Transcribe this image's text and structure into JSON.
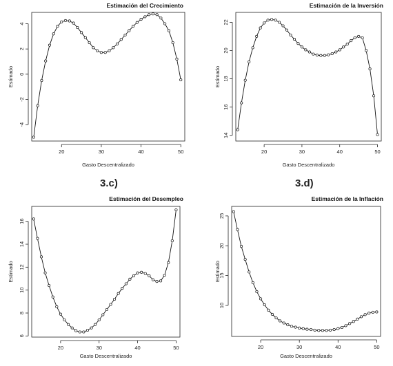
{
  "captions": {
    "c": "3.c)",
    "d": "3.d)"
  },
  "chart_data": [
    {
      "type": "line",
      "title": "Estimación del Crecimiento",
      "xlabel": "Gasto Descentralizado",
      "ylabel": "Estimado",
      "xticks": [
        20,
        30,
        40,
        50
      ],
      "yticks": [
        -4,
        -2,
        0,
        2,
        4
      ],
      "xlim": [
        12.5,
        51
      ],
      "ylim": [
        -5.3,
        4.9
      ],
      "series": [
        {
          "x": [
            13,
            14,
            15,
            16,
            17,
            18,
            19,
            20,
            21,
            22,
            23,
            24,
            25,
            26,
            27,
            28,
            29,
            30,
            31,
            32,
            33,
            34,
            35,
            36,
            37,
            38,
            39,
            40,
            41,
            42,
            43,
            44,
            45,
            46,
            47,
            48,
            49,
            50
          ],
          "values": [
            -5.0,
            -2.5,
            -0.5,
            1.05,
            2.3,
            3.2,
            3.8,
            4.15,
            4.25,
            4.22,
            4.05,
            3.7,
            3.3,
            2.9,
            2.5,
            2.1,
            1.85,
            1.72,
            1.72,
            1.85,
            2.1,
            2.4,
            2.75,
            3.1,
            3.45,
            3.8,
            4.1,
            4.35,
            4.55,
            4.72,
            4.78,
            4.72,
            4.45,
            4.0,
            3.45,
            2.5,
            1.2,
            -0.45
          ]
        }
      ]
    },
    {
      "type": "line",
      "title": "Estimación de la Inversión",
      "xlabel": "Gasto Descentralizado",
      "ylabel": "Estimado",
      "xticks": [
        20,
        30,
        40,
        50
      ],
      "yticks": [
        14,
        16,
        18,
        20,
        22
      ],
      "xlim": [
        12.5,
        51
      ],
      "ylim": [
        13.6,
        22.7
      ],
      "series": [
        {
          "x": [
            13,
            14,
            15,
            16,
            17,
            18,
            19,
            20,
            21,
            22,
            23,
            24,
            25,
            26,
            27,
            28,
            29,
            30,
            31,
            32,
            33,
            34,
            35,
            36,
            37,
            38,
            39,
            40,
            41,
            42,
            43,
            44,
            45,
            46,
            47,
            48,
            49,
            50
          ],
          "values": [
            14.4,
            16.3,
            17.9,
            19.2,
            20.2,
            21.0,
            21.6,
            21.95,
            22.15,
            22.2,
            22.15,
            22.0,
            21.75,
            21.45,
            21.1,
            20.8,
            20.5,
            20.25,
            20.05,
            19.9,
            19.75,
            19.68,
            19.65,
            19.65,
            19.7,
            19.78,
            19.9,
            20.05,
            20.25,
            20.45,
            20.7,
            20.9,
            21.0,
            20.9,
            20.0,
            18.7,
            16.8,
            14.05
          ]
        }
      ]
    },
    {
      "type": "line",
      "title": "Estimación del Desempleo",
      "xlabel": "Gasto Descentralizado",
      "ylabel": "Estimado",
      "xticks": [
        20,
        30,
        40,
        50
      ],
      "yticks": [
        6,
        8,
        10,
        12,
        14,
        16
      ],
      "xlim": [
        12.5,
        51
      ],
      "ylim": [
        5.9,
        17.3
      ],
      "series": [
        {
          "x": [
            13,
            14,
            15,
            16,
            17,
            18,
            19,
            20,
            21,
            22,
            23,
            24,
            25,
            26,
            27,
            28,
            29,
            30,
            31,
            32,
            33,
            34,
            35,
            36,
            37,
            38,
            39,
            40,
            41,
            42,
            43,
            44,
            45,
            46,
            47,
            48,
            49,
            50
          ],
          "values": [
            16.2,
            14.5,
            12.9,
            11.5,
            10.4,
            9.4,
            8.55,
            7.9,
            7.4,
            7.0,
            6.7,
            6.45,
            6.35,
            6.35,
            6.5,
            6.7,
            7.0,
            7.4,
            7.85,
            8.3,
            8.75,
            9.2,
            9.7,
            10.15,
            10.55,
            10.95,
            11.25,
            11.5,
            11.55,
            11.45,
            11.25,
            10.9,
            10.75,
            10.8,
            11.3,
            12.4,
            14.3,
            17.0
          ]
        }
      ]
    },
    {
      "type": "line",
      "title": "Estimación de la Inflación",
      "xlabel": "Gasto Descentralizado",
      "ylabel": "Estimado",
      "xticks": [
        20,
        30,
        40,
        50
      ],
      "yticks": [
        10,
        15,
        20,
        25
      ],
      "xlim": [
        12.5,
        51
      ],
      "ylim": [
        4.8,
        26.6
      ],
      "series": [
        {
          "x": [
            13,
            14,
            15,
            16,
            17,
            18,
            19,
            20,
            21,
            22,
            23,
            24,
            25,
            26,
            27,
            28,
            29,
            30,
            31,
            32,
            33,
            34,
            35,
            36,
            37,
            38,
            39,
            40,
            41,
            42,
            43,
            44,
            45,
            46,
            47,
            48,
            49,
            50
          ],
          "values": [
            25.7,
            22.7,
            19.9,
            17.7,
            15.6,
            13.8,
            12.3,
            11.1,
            10.1,
            9.2,
            8.5,
            7.9,
            7.4,
            7.05,
            6.75,
            6.5,
            6.35,
            6.2,
            6.1,
            6.0,
            5.95,
            5.85,
            5.8,
            5.8,
            5.8,
            5.85,
            5.95,
            6.1,
            6.3,
            6.6,
            6.95,
            7.3,
            7.7,
            8.1,
            8.45,
            8.7,
            8.85,
            8.9
          ]
        }
      ]
    }
  ]
}
